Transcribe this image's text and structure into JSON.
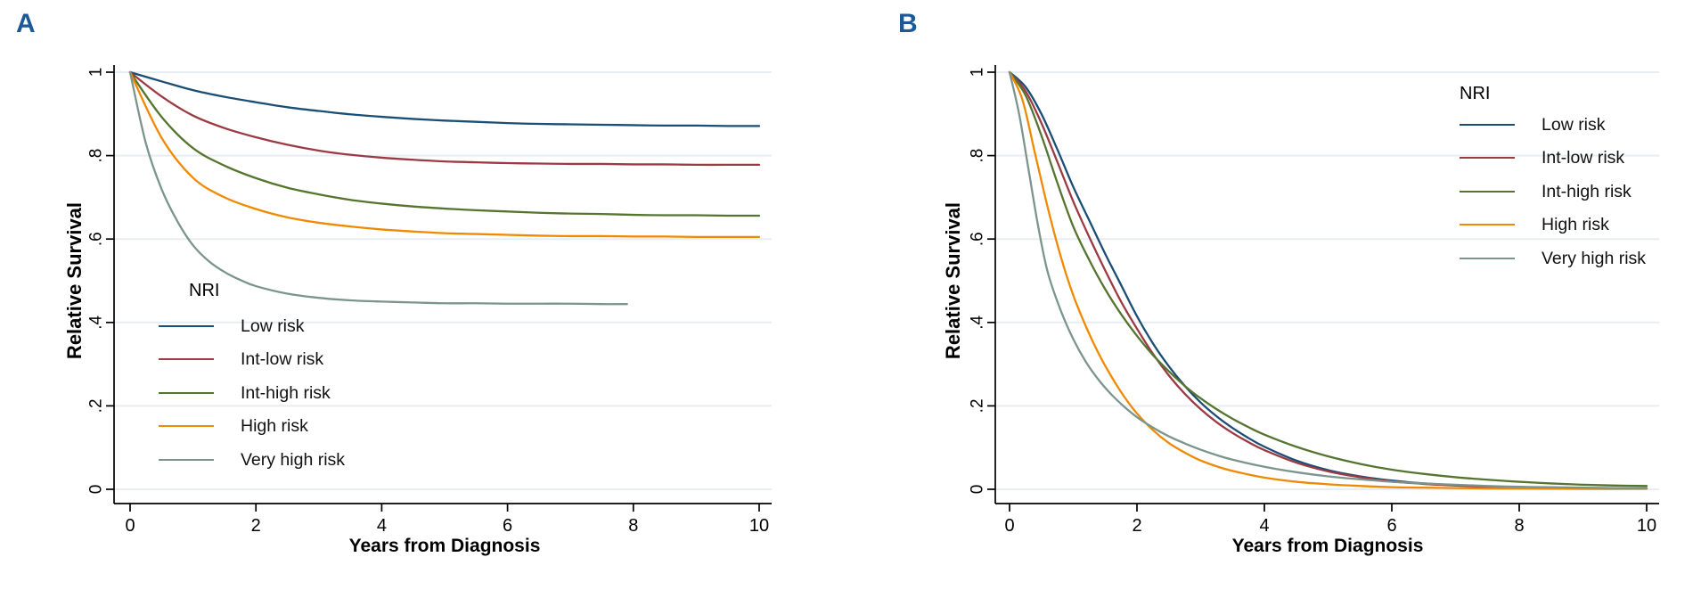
{
  "colors": {
    "panel_letter": "#1b5a99",
    "grid": "#e6eef4",
    "axis": "#000000",
    "low_risk": "#1a4e74",
    "int_low_risk": "#9c3a44",
    "int_high_risk": "#55752f",
    "high_risk": "#ef8a00",
    "very_high_risk": "#7b958c"
  },
  "chart_data": [
    {
      "type": "line",
      "title": "A",
      "xlabel": "Years from Diagnosis",
      "ylabel": "Relative Survival",
      "xlim": [
        0,
        10
      ],
      "ylim": [
        0,
        1
      ],
      "x_ticks": [
        0,
        2,
        4,
        6,
        8,
        10
      ],
      "x_tick_labels": [
        "0",
        "2",
        "4",
        "6",
        "8",
        "10"
      ],
      "y_ticks": [
        0,
        0.2,
        0.4,
        0.6,
        0.8,
        1
      ],
      "y_tick_labels": [
        "0",
        ".2",
        ".4",
        ".6",
        ".8",
        "1"
      ],
      "grid": "horizontal",
      "legend": {
        "title": "NRI",
        "position": "inside-bottom-left"
      },
      "series": [
        {
          "name": "Low risk",
          "color": "#1a4e74",
          "points": [
            [
              0,
              1
            ],
            [
              0.5,
              0.978
            ],
            [
              1,
              0.957
            ],
            [
              1.5,
              0.941
            ],
            [
              2,
              0.928
            ],
            [
              2.5,
              0.916
            ],
            [
              3,
              0.907
            ],
            [
              3.5,
              0.899
            ],
            [
              4,
              0.893
            ],
            [
              4.5,
              0.888
            ],
            [
              5,
              0.884
            ],
            [
              5.5,
              0.881
            ],
            [
              6,
              0.878
            ],
            [
              6.5,
              0.876
            ],
            [
              7,
              0.875
            ],
            [
              7.5,
              0.874
            ],
            [
              8,
              0.873
            ],
            [
              8.5,
              0.872
            ],
            [
              9,
              0.872
            ],
            [
              9.5,
              0.871
            ],
            [
              10,
              0.871
            ]
          ]
        },
        {
          "name": "Int-low risk",
          "color": "#9c3a44",
          "points": [
            [
              0,
              1
            ],
            [
              0.5,
              0.942
            ],
            [
              1,
              0.896
            ],
            [
              1.5,
              0.866
            ],
            [
              2,
              0.844
            ],
            [
              2.5,
              0.826
            ],
            [
              3,
              0.812
            ],
            [
              3.5,
              0.802
            ],
            [
              4,
              0.795
            ],
            [
              4.5,
              0.79
            ],
            [
              5,
              0.786
            ],
            [
              5.5,
              0.784
            ],
            [
              6,
              0.782
            ],
            [
              6.5,
              0.781
            ],
            [
              7,
              0.78
            ],
            [
              7.5,
              0.78
            ],
            [
              8,
              0.779
            ],
            [
              8.5,
              0.779
            ],
            [
              9,
              0.778
            ],
            [
              9.5,
              0.778
            ],
            [
              10,
              0.778
            ]
          ]
        },
        {
          "name": "Int-high risk",
          "color": "#55752f",
          "points": [
            [
              0,
              1
            ],
            [
              0.5,
              0.893
            ],
            [
              1,
              0.818
            ],
            [
              1.5,
              0.776
            ],
            [
              2,
              0.746
            ],
            [
              2.5,
              0.723
            ],
            [
              3,
              0.707
            ],
            [
              3.5,
              0.694
            ],
            [
              4,
              0.685
            ],
            [
              4.5,
              0.678
            ],
            [
              5,
              0.673
            ],
            [
              5.5,
              0.669
            ],
            [
              6,
              0.666
            ],
            [
              6.5,
              0.663
            ],
            [
              7,
              0.661
            ],
            [
              7.5,
              0.66
            ],
            [
              8,
              0.658
            ],
            [
              8.5,
              0.657
            ],
            [
              9,
              0.657
            ],
            [
              9.5,
              0.656
            ],
            [
              10,
              0.656
            ]
          ]
        },
        {
          "name": "High risk",
          "color": "#ef8a00",
          "points": [
            [
              0,
              1
            ],
            [
              0.5,
              0.843
            ],
            [
              1,
              0.747
            ],
            [
              1.5,
              0.7
            ],
            [
              2,
              0.672
            ],
            [
              2.5,
              0.652
            ],
            [
              3,
              0.639
            ],
            [
              3.5,
              0.63
            ],
            [
              4,
              0.623
            ],
            [
              4.5,
              0.618
            ],
            [
              5,
              0.614
            ],
            [
              5.5,
              0.612
            ],
            [
              6,
              0.61
            ],
            [
              6.5,
              0.608
            ],
            [
              7,
              0.607
            ],
            [
              7.5,
              0.607
            ],
            [
              8,
              0.606
            ],
            [
              8.5,
              0.606
            ],
            [
              9,
              0.605
            ],
            [
              9.5,
              0.605
            ],
            [
              10,
              0.605
            ]
          ]
        },
        {
          "name": "Very high risk",
          "color": "#7b958c",
          "points": [
            [
              0,
              1
            ],
            [
              0.25,
              0.83
            ],
            [
              0.5,
              0.72
            ],
            [
              0.75,
              0.643
            ],
            [
              1,
              0.585
            ],
            [
              1.25,
              0.547
            ],
            [
              1.5,
              0.521
            ],
            [
              1.75,
              0.502
            ],
            [
              2,
              0.487
            ],
            [
              2.5,
              0.469
            ],
            [
              3,
              0.459
            ],
            [
              3.5,
              0.453
            ],
            [
              4,
              0.45
            ],
            [
              4.5,
              0.448
            ],
            [
              5,
              0.446
            ],
            [
              5.5,
              0.446
            ],
            [
              6,
              0.445
            ],
            [
              6.5,
              0.445
            ],
            [
              7,
              0.445
            ],
            [
              7.5,
              0.444
            ],
            [
              7.9,
              0.444
            ]
          ]
        }
      ]
    },
    {
      "type": "line",
      "title": "B",
      "xlabel": "Years from Diagnosis",
      "ylabel": "Relative Survival",
      "xlim": [
        0,
        10
      ],
      "ylim": [
        0,
        1
      ],
      "x_ticks": [
        0,
        2,
        4,
        6,
        8,
        10
      ],
      "x_tick_labels": [
        "0",
        "2",
        "4",
        "6",
        "8",
        "10"
      ],
      "y_ticks": [
        0,
        0.2,
        0.4,
        0.6,
        0.8,
        1
      ],
      "y_tick_labels": [
        "0",
        ".2",
        ".4",
        ".6",
        ".8",
        "1"
      ],
      "grid": "horizontal",
      "legend": {
        "title": "NRI",
        "position": "inside-top-right"
      },
      "series": [
        {
          "name": "Low risk",
          "color": "#1a4e74",
          "points": [
            [
              0,
              1
            ],
            [
              0.25,
              0.965
            ],
            [
              0.5,
              0.9
            ],
            [
              0.75,
              0.815
            ],
            [
              1,
              0.725
            ],
            [
              1.25,
              0.645
            ],
            [
              1.5,
              0.565
            ],
            [
              1.75,
              0.49
            ],
            [
              2,
              0.415
            ],
            [
              2.25,
              0.35
            ],
            [
              2.5,
              0.295
            ],
            [
              2.75,
              0.248
            ],
            [
              3,
              0.208
            ],
            [
              3.25,
              0.175
            ],
            [
              3.5,
              0.147
            ],
            [
              3.75,
              0.123
            ],
            [
              4,
              0.102
            ],
            [
              4.5,
              0.069
            ],
            [
              5,
              0.046
            ],
            [
              5.5,
              0.031
            ],
            [
              6,
              0.021
            ],
            [
              6.5,
              0.014
            ],
            [
              7,
              0.01
            ],
            [
              7.5,
              0.007
            ],
            [
              8,
              0.005
            ],
            [
              8.5,
              0.004
            ],
            [
              9,
              0.003
            ],
            [
              9.5,
              0.003
            ],
            [
              10,
              0.002
            ]
          ]
        },
        {
          "name": "Int-low risk",
          "color": "#9c3a44",
          "points": [
            [
              0,
              1
            ],
            [
              0.25,
              0.955
            ],
            [
              0.5,
              0.878
            ],
            [
              0.75,
              0.785
            ],
            [
              1,
              0.69
            ],
            [
              1.25,
              0.605
            ],
            [
              1.5,
              0.525
            ],
            [
              1.75,
              0.45
            ],
            [
              2,
              0.385
            ],
            [
              2.25,
              0.325
            ],
            [
              2.5,
              0.273
            ],
            [
              2.75,
              0.229
            ],
            [
              3,
              0.192
            ],
            [
              3.25,
              0.161
            ],
            [
              3.5,
              0.135
            ],
            [
              3.75,
              0.113
            ],
            [
              4,
              0.094
            ],
            [
              4.5,
              0.064
            ],
            [
              5,
              0.043
            ],
            [
              5.5,
              0.029
            ],
            [
              6,
              0.019
            ],
            [
              6.5,
              0.013
            ],
            [
              7,
              0.009
            ],
            [
              7.5,
              0.006
            ],
            [
              8,
              0.005
            ],
            [
              8.5,
              0.004
            ],
            [
              9,
              0.003
            ],
            [
              9.5,
              0.002
            ],
            [
              10,
              0.002
            ]
          ]
        },
        {
          "name": "Int-high risk",
          "color": "#55752f",
          "points": [
            [
              0,
              1
            ],
            [
              0.25,
              0.945
            ],
            [
              0.5,
              0.848
            ],
            [
              0.75,
              0.735
            ],
            [
              1,
              0.63
            ],
            [
              1.25,
              0.55
            ],
            [
              1.5,
              0.48
            ],
            [
              1.75,
              0.42
            ],
            [
              2,
              0.368
            ],
            [
              2.25,
              0.322
            ],
            [
              2.5,
              0.283
            ],
            [
              2.75,
              0.248
            ],
            [
              3,
              0.218
            ],
            [
              3.25,
              0.192
            ],
            [
              3.5,
              0.169
            ],
            [
              3.75,
              0.149
            ],
            [
              4,
              0.131
            ],
            [
              4.5,
              0.102
            ],
            [
              5,
              0.079
            ],
            [
              5.5,
              0.061
            ],
            [
              6,
              0.047
            ],
            [
              6.5,
              0.037
            ],
            [
              7,
              0.029
            ],
            [
              7.5,
              0.023
            ],
            [
              8,
              0.018
            ],
            [
              8.5,
              0.014
            ],
            [
              9,
              0.011
            ],
            [
              9.5,
              0.009
            ],
            [
              10,
              0.008
            ]
          ]
        },
        {
          "name": "High risk",
          "color": "#ef8a00",
          "points": [
            [
              0,
              1
            ],
            [
              0.2,
              0.935
            ],
            [
              0.4,
              0.805
            ],
            [
              0.6,
              0.675
            ],
            [
              0.8,
              0.56
            ],
            [
              1,
              0.465
            ],
            [
              1.2,
              0.39
            ],
            [
              1.4,
              0.325
            ],
            [
              1.6,
              0.27
            ],
            [
              1.8,
              0.222
            ],
            [
              2,
              0.182
            ],
            [
              2.25,
              0.142
            ],
            [
              2.5,
              0.111
            ],
            [
              2.75,
              0.088
            ],
            [
              3,
              0.069
            ],
            [
              3.25,
              0.055
            ],
            [
              3.5,
              0.044
            ],
            [
              4,
              0.028
            ],
            [
              4.5,
              0.018
            ],
            [
              5,
              0.012
            ],
            [
              5.5,
              0.008
            ],
            [
              6,
              0.005
            ],
            [
              6.5,
              0.004
            ],
            [
              7,
              0.003
            ],
            [
              7.5,
              0.002
            ],
            [
              8,
              0.002
            ],
            [
              9,
              0.001
            ],
            [
              10,
              0.001
            ]
          ]
        },
        {
          "name": "Very high risk",
          "color": "#7b958c",
          "points": [
            [
              0,
              1
            ],
            [
              0.15,
              0.9
            ],
            [
              0.3,
              0.765
            ],
            [
              0.45,
              0.63
            ],
            [
              0.6,
              0.52
            ],
            [
              0.8,
              0.43
            ],
            [
              1,
              0.36
            ],
            [
              1.2,
              0.305
            ],
            [
              1.4,
              0.262
            ],
            [
              1.6,
              0.227
            ],
            [
              1.8,
              0.198
            ],
            [
              2,
              0.173
            ],
            [
              2.25,
              0.148
            ],
            [
              2.5,
              0.127
            ],
            [
              2.75,
              0.11
            ],
            [
              3,
              0.095
            ],
            [
              3.25,
              0.082
            ],
            [
              3.5,
              0.071
            ],
            [
              4,
              0.054
            ],
            [
              4.5,
              0.041
            ],
            [
              5,
              0.031
            ],
            [
              5.5,
              0.024
            ],
            [
              6,
              0.018
            ],
            [
              6.5,
              0.014
            ],
            [
              7,
              0.011
            ],
            [
              7.5,
              0.008
            ],
            [
              8,
              0.006
            ],
            [
              8.5,
              0.005
            ],
            [
              9,
              0.004
            ],
            [
              9.5,
              0.003
            ],
            [
              10,
              0.003
            ]
          ]
        }
      ]
    }
  ]
}
